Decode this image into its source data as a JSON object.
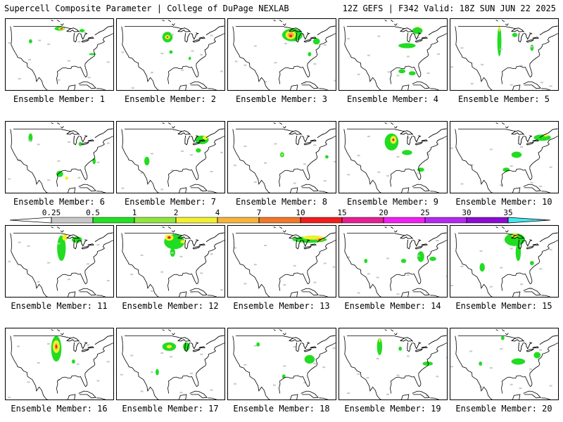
{
  "header": {
    "left": "Supercell Composite Parameter | College of DuPage NEXLAB",
    "right": "12Z GEFS | F342 Valid: 18Z SUN JUN 22 2025"
  },
  "panel_label_prefix": "Ensemble Member: ",
  "members": [
    1,
    2,
    3,
    4,
    5,
    6,
    7,
    8,
    9,
    10,
    11,
    12,
    13,
    14,
    15,
    16,
    17,
    18,
    19,
    20
  ],
  "colorbar": {
    "ticks": [
      "0.25",
      "0.5",
      "1",
      "2",
      "4",
      "7",
      "10",
      "15",
      "20",
      "25",
      "30",
      "35"
    ],
    "colors": [
      "#c8c8c8",
      "#22e022",
      "#8ee63c",
      "#f0f030",
      "#f7b43a",
      "#f07828",
      "#ee1e1e",
      "#e61e96",
      "#f21ef0",
      "#b428f0",
      "#8c0ad2",
      "#c080e0",
      "#46e6f0"
    ]
  },
  "colors": {
    "gray": "#c8c8c8",
    "green": "#22dc22",
    "lime": "#8ee63c",
    "yellow": "#f0f030",
    "orange": "#f7a83a",
    "red": "#ee1e1e",
    "map_lines": "#000000"
  },
  "blobs": {
    "1": [
      [
        "#22dc22",
        [
          -96,
          48
        ],
        [
          3,
          1
        ]
      ],
      [
        "#f0f030",
        [
          -95,
          48
        ],
        [
          1.8,
          0.6
        ]
      ],
      [
        "#ee1e1e",
        [
          -95,
          48
        ],
        [
          0.8,
          0.3
        ]
      ],
      [
        "#22dc22",
        [
          -113,
          42
        ],
        [
          1,
          1
        ]
      ],
      [
        "#22dc22",
        [
          -83,
          47
        ],
        [
          1.5,
          0.8
        ]
      ],
      [
        "#22dc22",
        [
          -77,
          36
        ],
        [
          2,
          0.5
        ]
      ]
    ],
    "2": [
      [
        "#22dc22",
        [
          -98,
          44
        ],
        [
          3,
          2.5
        ]
      ],
      [
        "#f0f030",
        [
          -98,
          44
        ],
        [
          1.5,
          1
        ]
      ],
      [
        "#ee1e1e",
        [
          -98,
          44
        ],
        [
          0.5,
          0.4
        ]
      ],
      [
        "#22dc22",
        [
          -96,
          37
        ],
        [
          1,
          0.8
        ]
      ],
      [
        "#22dc22",
        [
          -85,
          34
        ],
        [
          0.7,
          0.8
        ]
      ]
    ],
    "3": [
      [
        "#22dc22",
        [
          -90,
          45
        ],
        [
          6,
          3
        ]
      ],
      [
        "#f0f030",
        [
          -91,
          45
        ],
        [
          3,
          2
        ]
      ],
      [
        "#f7a83a",
        [
          -91,
          45
        ],
        [
          1.8,
          1.2
        ]
      ],
      [
        "#ee1e1e",
        [
          -91,
          44.5
        ],
        [
          0.8,
          0.6
        ]
      ],
      [
        "#22dc22",
        [
          -76,
          42
        ],
        [
          2,
          1.5
        ]
      ],
      [
        "#22dc22",
        [
          -80,
          36
        ],
        [
          1,
          1
        ]
      ]
    ],
    "4": [
      [
        "#22dc22",
        [
          -88,
          40
        ],
        [
          5,
          1.2
        ]
      ],
      [
        "#f0f030",
        [
          -82,
          48
        ],
        [
          1.5,
          1
        ]
      ],
      [
        "#22dc22",
        [
          -82,
          47
        ],
        [
          3,
          1.6
        ]
      ],
      [
        "#22dc22",
        [
          -91,
          28
        ],
        [
          2,
          1
        ]
      ],
      [
        "#22dc22",
        [
          -85,
          27
        ],
        [
          2,
          1
        ]
      ]
    ],
    "5": [
      [
        "#22dc22",
        [
          -99,
          42
        ],
        [
          1.2,
          7
        ]
      ],
      [
        "#f0f030",
        [
          -99,
          48
        ],
        [
          0.5,
          1.5
        ]
      ],
      [
        "#22dc22",
        [
          -90,
          45
        ],
        [
          1.5,
          1
        ]
      ],
      [
        "#22dc22",
        [
          -80,
          39
        ],
        [
          1,
          1.5
        ]
      ]
    ],
    "6": [
      [
        "#22dc22",
        [
          -113,
          45
        ],
        [
          1.2,
          2
        ]
      ],
      [
        "#22dc22",
        [
          -96,
          28
        ],
        [
          2,
          1.5
        ]
      ],
      [
        "#f0f030",
        [
          -92,
          26
        ],
        [
          1,
          0.8
        ]
      ],
      [
        "#22dc22",
        [
          -84,
          42
        ],
        [
          1,
          1
        ]
      ],
      [
        "#22dc22",
        [
          -76,
          34
        ],
        [
          1,
          1.5
        ]
      ]
    ],
    "7": [
      [
        "#22dc22",
        [
          -78,
          44
        ],
        [
          4,
          2
        ]
      ],
      [
        "#f0f030",
        [
          -76,
          45
        ],
        [
          1.5,
          1
        ]
      ],
      [
        "#22dc22",
        [
          -110,
          34
        ],
        [
          1.5,
          2
        ]
      ],
      [
        "#22dc22",
        [
          -80,
          39
        ],
        [
          1.5,
          1
        ]
      ]
    ],
    "8": [
      [
        "#22dc22",
        [
          -96,
          37
        ],
        [
          1.2,
          1.2
        ]
      ],
      [
        "#f0f030",
        [
          -96,
          37
        ],
        [
          0.5,
          0.5
        ]
      ],
      [
        "#22dc22",
        [
          -70,
          36
        ],
        [
          1,
          0.8
        ]
      ]
    ],
    "9": [
      [
        "#22dc22",
        [
          -97,
          43
        ],
        [
          4,
          4
        ]
      ],
      [
        "#f0f030",
        [
          -96,
          44
        ],
        [
          1.8,
          1.8
        ]
      ],
      [
        "#ee1e1e",
        [
          -96,
          44
        ],
        [
          0.6,
          0.6
        ]
      ],
      [
        "#22dc22",
        [
          -88,
          38
        ],
        [
          3,
          1.2
        ]
      ],
      [
        "#22dc22",
        [
          -80,
          30
        ],
        [
          2,
          1
        ]
      ]
    ],
    "10": [
      [
        "#22dc22",
        [
          -74,
          45
        ],
        [
          5,
          1.5
        ]
      ],
      [
        "#f0f030",
        [
          -72,
          46
        ],
        [
          1.5,
          0.5
        ]
      ],
      [
        "#22dc22",
        [
          -89,
          37
        ],
        [
          3,
          1.5
        ]
      ],
      [
        "#22dc22",
        [
          -95,
          30
        ],
        [
          2,
          1
        ]
      ]
    ],
    "11": [
      [
        "#22dc22",
        [
          -95,
          42
        ],
        [
          2.5,
          6
        ]
      ],
      [
        "#f0f030",
        [
          -93,
          47
        ],
        [
          1.5,
          1.5
        ]
      ],
      [
        "#22dc22",
        [
          -86,
          46
        ],
        [
          3,
          1.5
        ]
      ]
    ],
    "12": [
      [
        "#22dc22",
        [
          -94,
          45
        ],
        [
          6,
          3.5
        ]
      ],
      [
        "#f0f030",
        [
          -97,
          47
        ],
        [
          2.5,
          1.5
        ]
      ],
      [
        "#ee1e1e",
        [
          -97,
          47
        ],
        [
          1,
          0.6
        ]
      ],
      [
        "#f0f030",
        [
          -89,
          45
        ],
        [
          1.5,
          0.8
        ]
      ],
      [
        "#22dc22",
        [
          -95,
          40
        ],
        [
          1.5,
          2
        ]
      ]
    ],
    "13": [
      [
        "#22dc22",
        [
          -80,
          46
        ],
        [
          10,
          1.5
        ]
      ],
      [
        "#f0f030",
        [
          -78,
          47
        ],
        [
          6,
          1
        ]
      ],
      [
        "#f7a83a",
        [
          -74,
          46
        ],
        [
          2,
          0.6
        ]
      ],
      [
        "#ee1e1e",
        [
          -74,
          46
        ],
        [
          0.8,
          0.4
        ]
      ]
    ],
    "14": [
      [
        "#22dc22",
        [
          -80,
          38
        ],
        [
          2,
          2.5
        ]
      ],
      [
        "#22dc22",
        [
          -90,
          36
        ],
        [
          1.5,
          1
        ]
      ],
      [
        "#22dc22",
        [
          -73,
          37
        ],
        [
          2,
          1
        ]
      ],
      [
        "#22dc22",
        [
          -112,
          36
        ],
        [
          1,
          1
        ]
      ]
    ],
    "15": [
      [
        "#22dc22",
        [
          -90,
          46
        ],
        [
          6,
          3
        ]
      ],
      [
        "#f0f030",
        [
          -90,
          48
        ],
        [
          2,
          1
        ]
      ],
      [
        "#22dc22",
        [
          -88,
          40
        ],
        [
          1.5,
          4
        ]
      ],
      [
        "#22dc22",
        [
          -109,
          33
        ],
        [
          1.5,
          2
        ]
      ],
      [
        "#22dc22",
        [
          -80,
          35
        ],
        [
          1.2,
          1
        ]
      ]
    ],
    "16": [
      [
        "#22dc22",
        [
          -98,
          43
        ],
        [
          3,
          6
        ]
      ],
      [
        "#f0f030",
        [
          -98,
          44
        ],
        [
          2,
          3
        ]
      ],
      [
        "#f7a83a",
        [
          -98,
          44
        ],
        [
          1,
          1.5
        ]
      ],
      [
        "#ee1e1e",
        [
          -98,
          44
        ],
        [
          0.5,
          0.8
        ]
      ],
      [
        "#22dc22",
        [
          -88,
          37
        ],
        [
          1,
          1
        ]
      ]
    ],
    "17": [
      [
        "#22dc22",
        [
          -97,
          44
        ],
        [
          4,
          2
        ]
      ],
      [
        "#f0f030",
        [
          -97,
          44
        ],
        [
          1.5,
          0.8
        ]
      ],
      [
        "#22dc22",
        [
          -87,
          44
        ],
        [
          2,
          2
        ]
      ],
      [
        "#22dc22",
        [
          -104,
          32
        ],
        [
          1,
          1.5
        ]
      ]
    ],
    "18": [
      [
        "#22dc22",
        [
          -80,
          38
        ],
        [
          3,
          2
        ]
      ],
      [
        "#22dc22",
        [
          -110,
          45
        ],
        [
          1,
          1
        ]
      ],
      [
        "#22dc22",
        [
          -95,
          30
        ],
        [
          1,
          1
        ]
      ]
    ],
    "19": [
      [
        "#22dc22",
        [
          -104,
          44
        ],
        [
          1.5,
          4
        ]
      ],
      [
        "#f0f030",
        [
          -104,
          47
        ],
        [
          0.5,
          1
        ]
      ],
      [
        "#22dc22",
        [
          -76,
          36
        ],
        [
          3,
          1
        ]
      ],
      [
        "#22dc22",
        [
          -92,
          43
        ],
        [
          1,
          1
        ]
      ]
    ],
    "20": [
      [
        "#22dc22",
        [
          -88,
          37
        ],
        [
          4,
          1.5
        ]
      ],
      [
        "#22dc22",
        [
          -77,
          40
        ],
        [
          2,
          1.5
        ]
      ],
      [
        "#22dc22",
        [
          -110,
          36
        ],
        [
          1,
          1
        ]
      ],
      [
        "#22dc22",
        [
          -97,
          48
        ],
        [
          1,
          1
        ]
      ]
    ]
  }
}
